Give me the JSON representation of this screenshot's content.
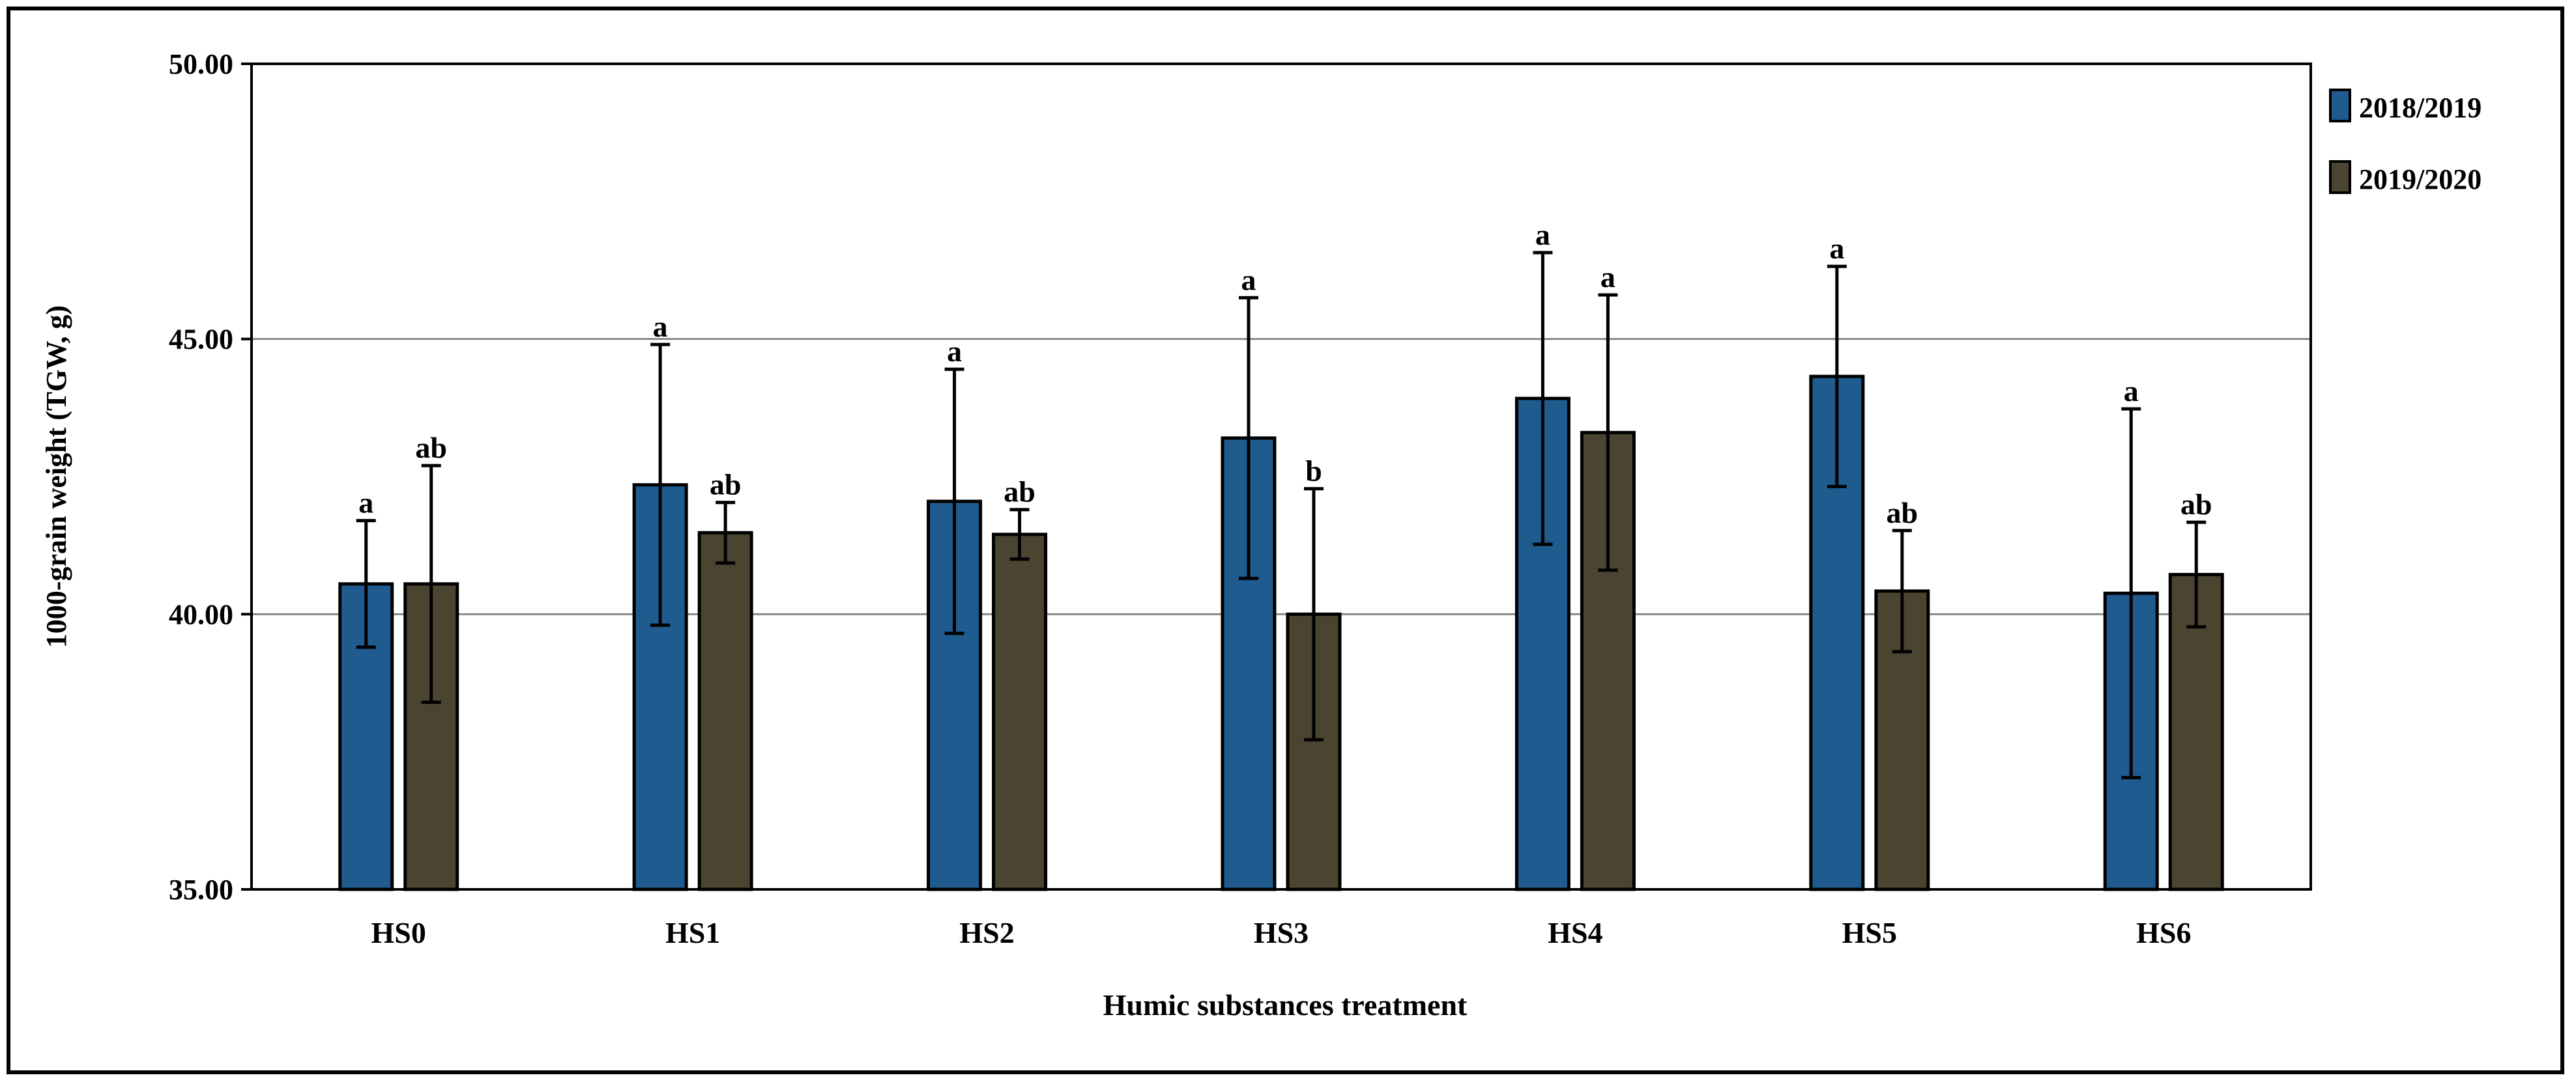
{
  "chart_data": {
    "type": "bar",
    "title": "",
    "xlabel": "Humic  substances treatment",
    "ylabel": "1000-grain  weight  (TGW,  g)",
    "ylim": [
      35,
      50
    ],
    "yticks": [
      "35.00",
      "40.00",
      "45.00",
      "50.00"
    ],
    "grid": true,
    "legend_position": "top-right",
    "categories": [
      "HS0",
      "HS1",
      "HS2",
      "HS3",
      "HS4",
      "HS5",
      "HS6"
    ],
    "series": [
      {
        "name": "2018/2019",
        "color": "#1f5b8e",
        "values": [
          40.55,
          42.35,
          42.05,
          43.2,
          43.92,
          44.32,
          40.38
        ],
        "errors": [
          1.15,
          2.55,
          2.4,
          2.55,
          2.65,
          2.0,
          3.35
        ],
        "labels": [
          "a",
          "a",
          "a",
          "a",
          "a",
          "a",
          "a"
        ]
      },
      {
        "name": "2019/2020",
        "color": "#4a4431",
        "values": [
          40.55,
          41.48,
          41.45,
          40.0,
          43.3,
          40.42,
          40.72
        ],
        "errors": [
          2.15,
          0.55,
          0.45,
          2.28,
          2.5,
          1.1,
          0.95
        ],
        "labels": [
          "ab",
          "ab",
          "ab",
          "b",
          "a",
          "ab",
          "ab"
        ]
      }
    ]
  }
}
